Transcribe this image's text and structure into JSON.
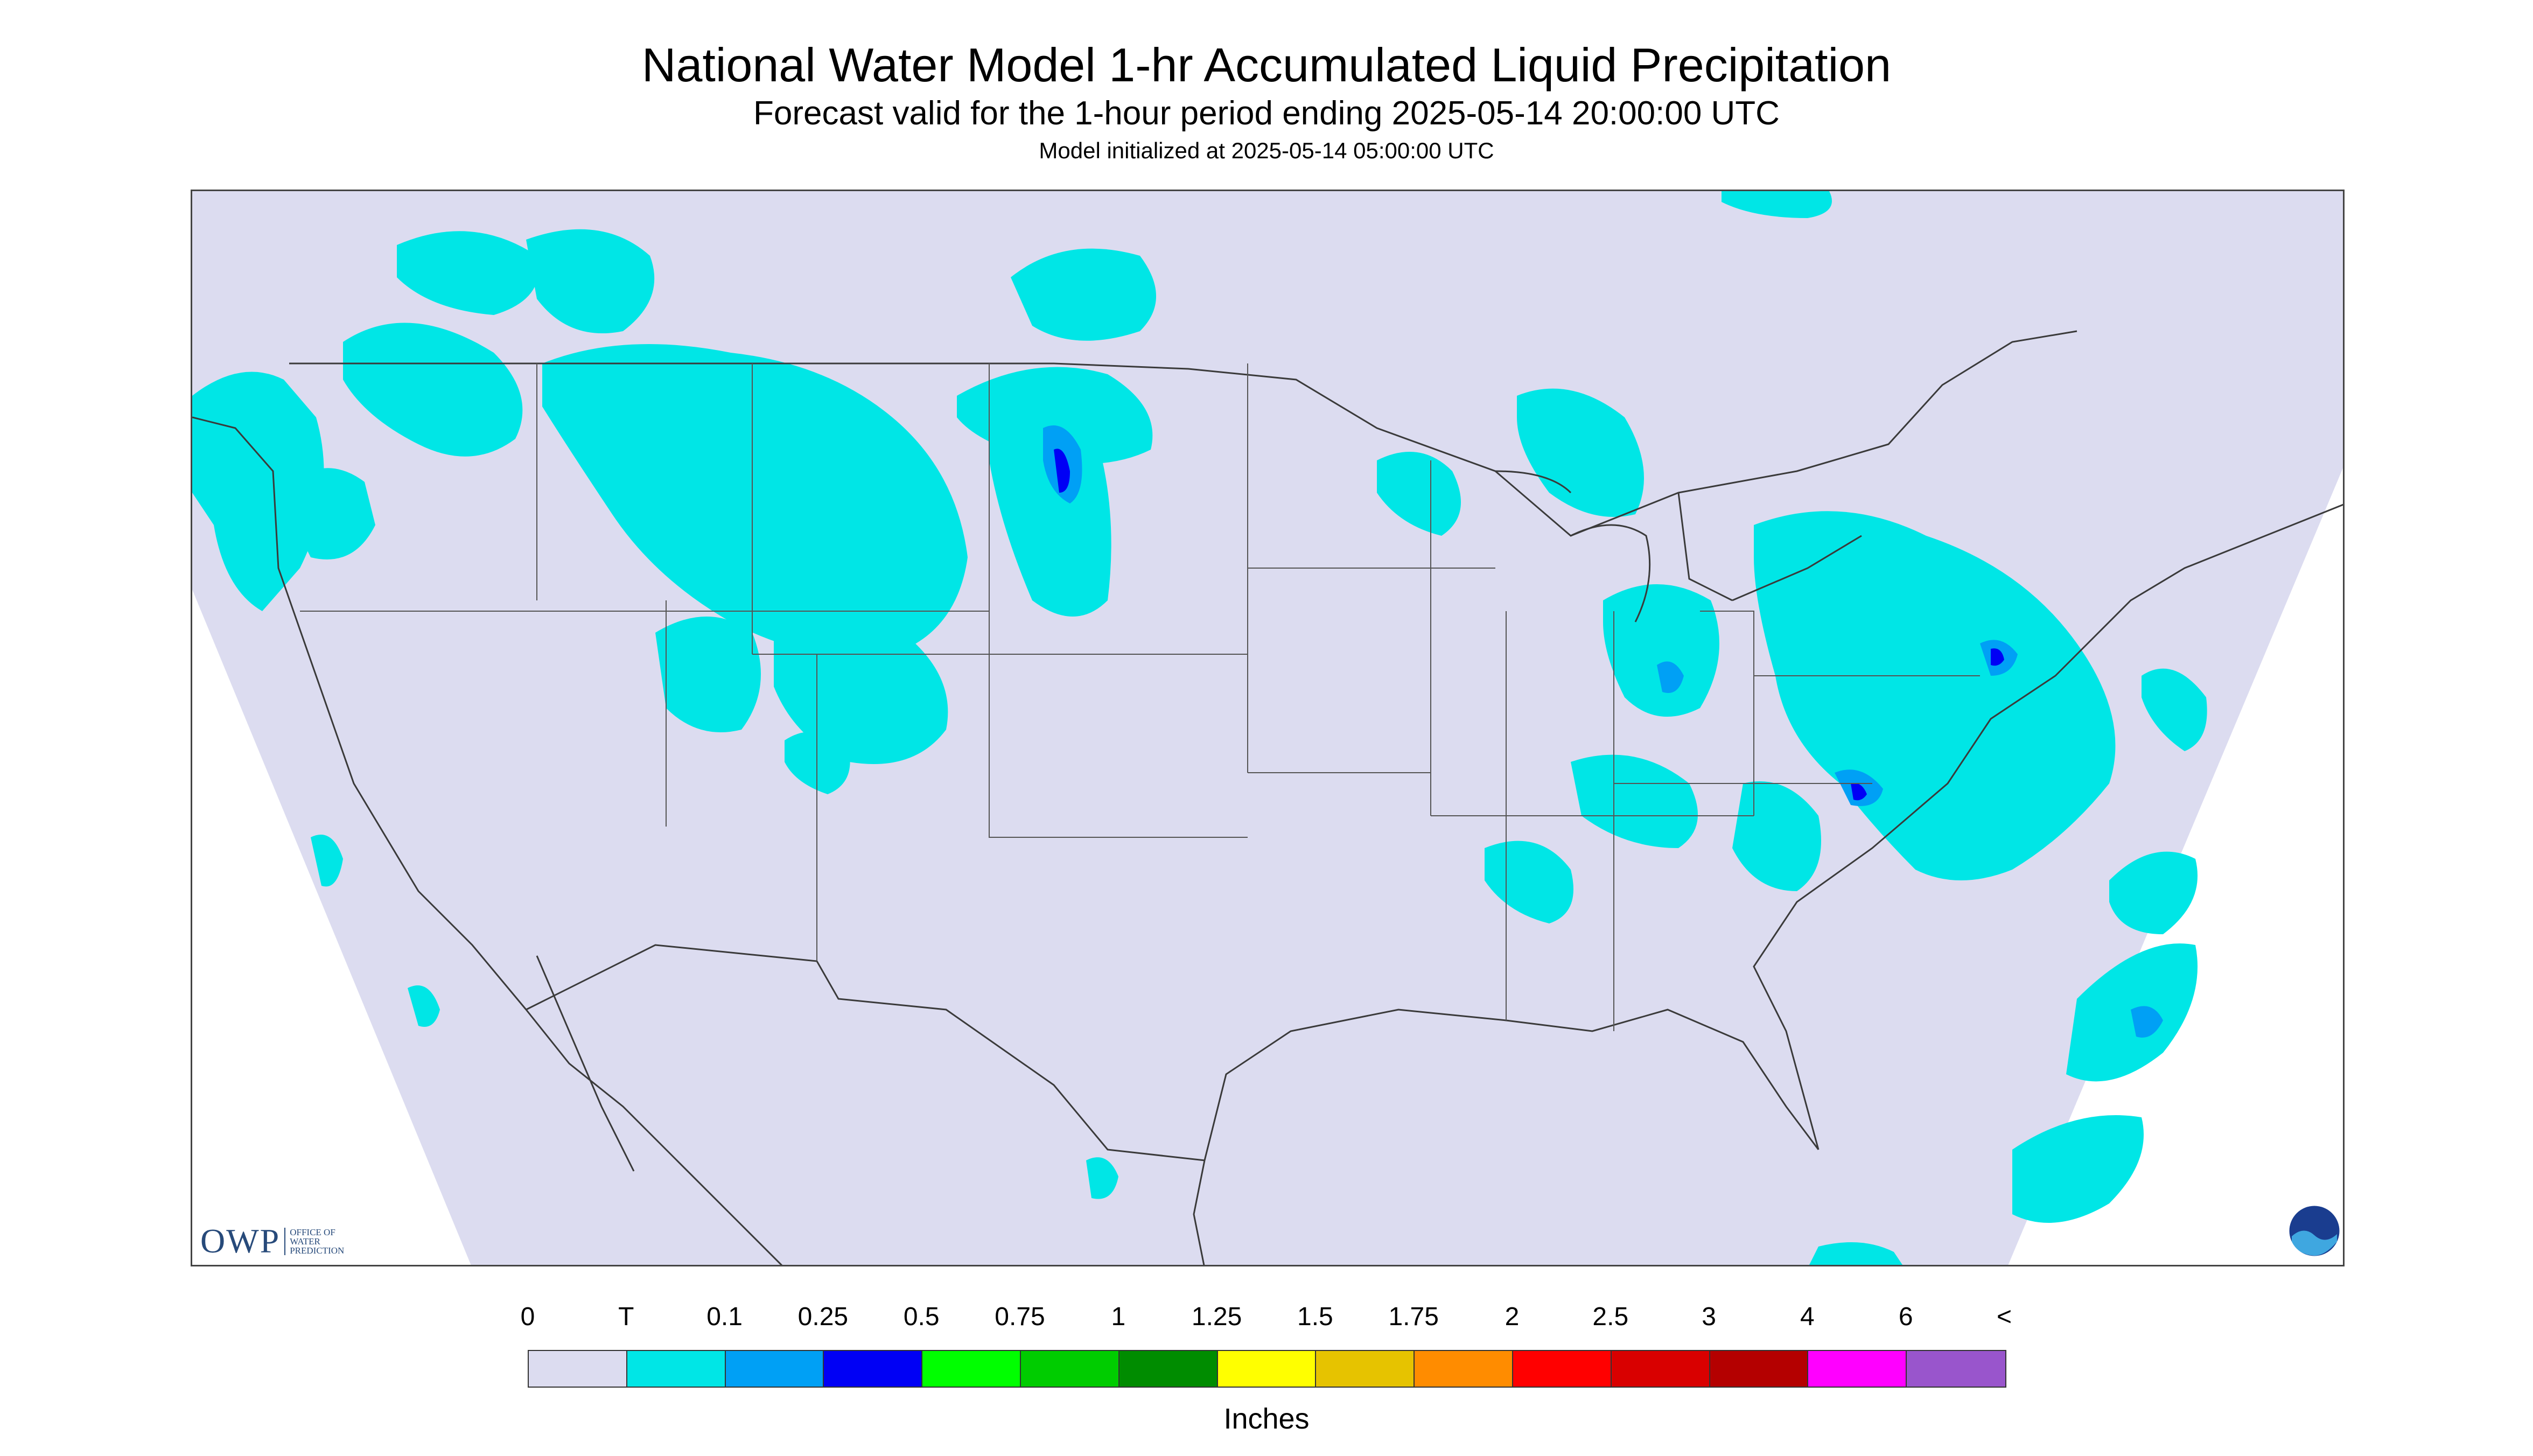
{
  "header": {
    "title": "National Water Model 1-hr Accumulated Liquid Precipitation",
    "subtitle": "Forecast valid for the 1-hour period ending 2025-05-14 20:00:00 UTC",
    "init": "Model initialized at 2025-05-14 05:00:00 UTC"
  },
  "logos": {
    "owp_abbrev": "OWP",
    "owp_name": "OFFICE OF WATER PREDICTION",
    "noaa": "NOAA"
  },
  "legend": {
    "labels": [
      "0",
      "T",
      "0.1",
      "0.25",
      "0.5",
      "0.75",
      "1",
      "1.25",
      "1.5",
      "1.75",
      "2",
      "2.5",
      "3",
      "4",
      "6",
      "<"
    ],
    "colors": [
      "#dcdcf0",
      "#00e6e6",
      "#00a0f5",
      "#0000f5",
      "#00ff00",
      "#00cc00",
      "#008c00",
      "#ffff00",
      "#e6c300",
      "#ff8c00",
      "#ff0000",
      "#d90000",
      "#b40000",
      "#ff00ff",
      "#9955cc"
    ],
    "units": "Inches"
  },
  "map": {
    "domain_fill": "#dcdcf0",
    "rain_light": "#00e6e6",
    "rain_mid": "#00a0f5",
    "rain_heavy": "#0000f5"
  }
}
